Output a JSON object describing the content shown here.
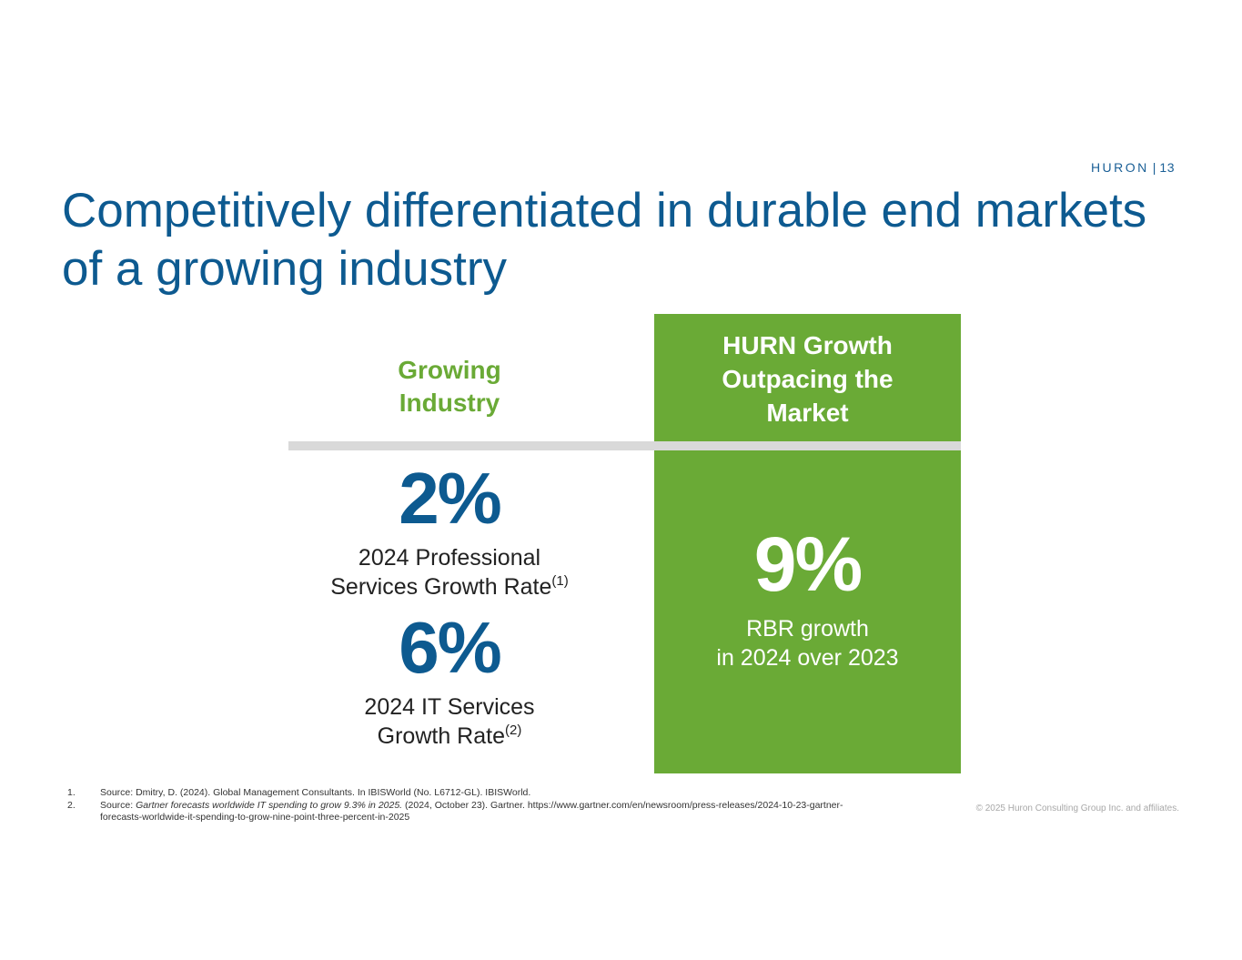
{
  "header": {
    "brand": "HURON",
    "separator": "|",
    "page_number": "13"
  },
  "title": "Competitively differentiated in durable end markets of a growing industry",
  "left_column": {
    "heading_line1": "Growing",
    "heading_line2": "Industry",
    "stats": [
      {
        "value": "2%",
        "label_line1": "2024 Professional",
        "label_line2": "Services Growth Rate",
        "ref": "(1)"
      },
      {
        "value": "6%",
        "label_line1": "2024 IT Services",
        "label_line2": "Growth Rate",
        "ref": "(2)"
      }
    ]
  },
  "right_column": {
    "heading_line1": "HURN Growth",
    "heading_line2": "Outpacing the",
    "heading_line3": "Market",
    "value": "9%",
    "label_line1": "RBR growth",
    "label_line2": "in 2024 over 2023"
  },
  "footnotes": [
    {
      "num": "1.",
      "text": "Source: Dmitry, D. (2024). Global Management Consultants. In IBISWorld (No. L6712-GL). IBISWorld."
    },
    {
      "num": "2.",
      "prefix": "Source: ",
      "italic": "Gartner forecasts worldwide IT spending to grow 9.3% in 2025.",
      "suffix": " (2024, October 23). Gartner. https://www.gartner.com/en/newsroom/press-releases/2024-10-23-gartner-forecasts-worldwide-it-spending-to-grow-nine-point-three-percent-in-2025"
    }
  ],
  "copyright": "© 2025 Huron Consulting Group Inc. and affiliates.",
  "colors": {
    "brand_blue": "#0d5a90",
    "brand_green": "#6aaa36",
    "divider_gray": "#d9d9d9"
  }
}
